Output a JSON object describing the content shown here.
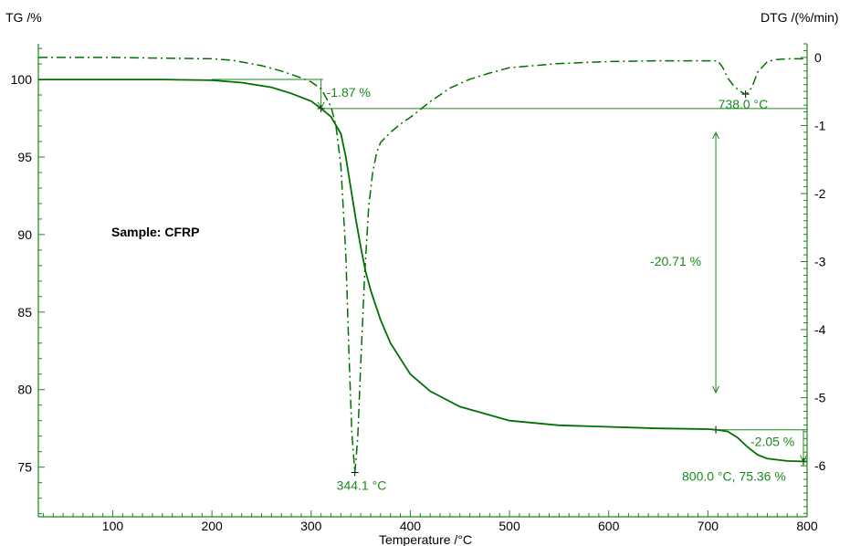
{
  "chart_data": {
    "type": "line",
    "colors": {
      "curve": "#007000",
      "axis_right": "#1a8a1a",
      "annotation": "#1a8a1a",
      "text": "#000000"
    },
    "xlabel": "Temperature /°C",
    "ylabel_left": "TG /%",
    "ylabel_right": "DTG /(%/min)",
    "xlim": [
      25,
      800
    ],
    "ylim_left": [
      71.8,
      102.3
    ],
    "ylim_right": [
      -6.75,
      0.2
    ],
    "x_ticks": [
      100,
      200,
      300,
      400,
      500,
      600,
      700,
      800
    ],
    "y_left_ticks": [
      75,
      80,
      85,
      90,
      95,
      100
    ],
    "y_right_ticks": [
      0,
      -1,
      -2,
      -3,
      -4,
      -5,
      -6
    ],
    "sample_label": "Sample: CFRP",
    "series": [
      {
        "name": "TG",
        "style": "solid",
        "axis": "left",
        "x": [
          25,
          100,
          150,
          200,
          230,
          260,
          280,
          300,
          310,
          320,
          330,
          335,
          340,
          345,
          350,
          355,
          360,
          370,
          380,
          400,
          420,
          450,
          500,
          550,
          600,
          650,
          700,
          710,
          720,
          730,
          740,
          750,
          760,
          780,
          800
        ],
        "y": [
          100.0,
          100.0,
          100.0,
          99.95,
          99.8,
          99.5,
          99.1,
          98.6,
          98.13,
          97.6,
          96.5,
          95.0,
          93.0,
          91.0,
          89.2,
          87.6,
          86.4,
          84.5,
          83.0,
          81.0,
          79.9,
          78.9,
          78.0,
          77.7,
          77.6,
          77.5,
          77.45,
          77.4,
          77.3,
          76.9,
          76.3,
          75.8,
          75.55,
          75.4,
          75.36
        ]
      },
      {
        "name": "DTG",
        "style": "dashdot",
        "axis": "right",
        "x": [
          25,
          50,
          100,
          150,
          200,
          220,
          250,
          270,
          290,
          300,
          310,
          320,
          325,
          330,
          335,
          338,
          341,
          344.1,
          347,
          350,
          354,
          358,
          362,
          366,
          370,
          380,
          390,
          400,
          420,
          440,
          460,
          480,
          500,
          550,
          600,
          650,
          700,
          710,
          715,
          720,
          725,
          730,
          735,
          738,
          742,
          746,
          750,
          760,
          770,
          780,
          800
        ],
        "y": [
          0.0,
          0.0,
          0.0,
          -0.01,
          -0.02,
          -0.04,
          -0.12,
          -0.2,
          -0.3,
          -0.36,
          -0.46,
          -0.72,
          -1.0,
          -1.6,
          -2.9,
          -4.3,
          -5.5,
          -6.1,
          -5.6,
          -4.5,
          -3.2,
          -2.2,
          -1.7,
          -1.4,
          -1.25,
          -1.1,
          -0.98,
          -0.88,
          -0.65,
          -0.45,
          -0.32,
          -0.23,
          -0.15,
          -0.09,
          -0.06,
          -0.05,
          -0.05,
          -0.05,
          -0.15,
          -0.3,
          -0.4,
          -0.47,
          -0.52,
          -0.54,
          -0.5,
          -0.38,
          -0.22,
          -0.06,
          -0.03,
          -0.02,
          -0.02
        ]
      }
    ],
    "annotations": {
      "step1": {
        "text": "-1.87 %",
        "x_start": 310,
        "x_end": 310,
        "y_top": 100.0,
        "y_bottom": 98.13
      },
      "step2": {
        "text": "-20.71 %",
        "x": 708,
        "y_top": 98.13,
        "y_bottom": 77.4
      },
      "step3": {
        "text": "-2.05 %",
        "x": 800,
        "y_top": 77.41,
        "y_bottom": 75.36
      },
      "peak1": {
        "text": "344.1 °C",
        "x": 344.1,
        "dtg": -6.1
      },
      "peak2": {
        "text": "738.0 °C",
        "x": 738.0,
        "dtg": -0.54
      },
      "end_point": {
        "text": "800.0 °C, 75.36 %",
        "x": 800.0,
        "y": 75.36
      }
    }
  }
}
